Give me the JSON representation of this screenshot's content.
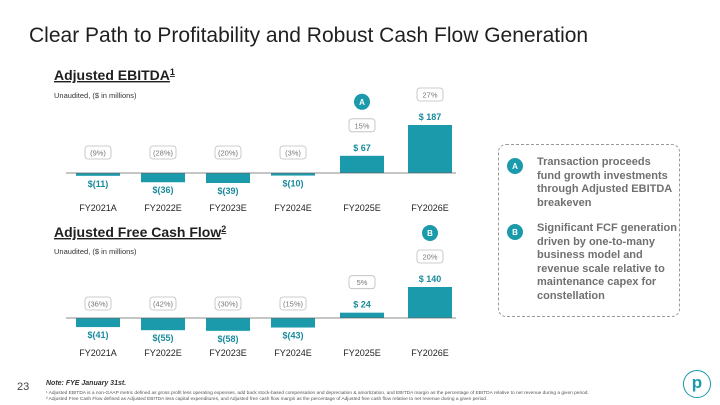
{
  "page": {
    "title": "Clear Path to Profitability and Robust Cash Flow Generation",
    "page_number": "23",
    "note": "Note: FYE January 31st.",
    "footnotes": [
      "¹ Adjusted EBITDA is a non-GAAP metric defined as gross profit less operating expenses, add back stock-based compensation and depreciation & amortization, and EBITDA margin as the percentage of EBITDA relative to net revenue during a given period.",
      "² Adjusted Free Cash Flow defined as Adjusted EBITDA less capital expenditures, and Adjusted free cash flow margin as the percentage of Adjusted free cash flow relative to net revenue during a given period."
    ],
    "logo_letter": "p"
  },
  "callout": {
    "items": [
      {
        "marker": "A",
        "text": "Transaction proceeds fund growth investments through Adjusted EBITDA breakeven"
      },
      {
        "marker": "B",
        "text": "Significant FCF generation driven by one-to-many business model and revenue scale relative to maintenance capex for constellation"
      }
    ]
  },
  "chart_data": [
    {
      "type": "bar",
      "title": "Adjusted EBITDA",
      "title_sup": "1",
      "subtitle": "Unaudited, ($ in millions)",
      "categories": [
        "FY2021A",
        "FY2022E",
        "FY2023E",
        "FY2024E",
        "FY2025E",
        "FY2026E"
      ],
      "values": [
        -11,
        -36,
        -39,
        -10,
        67,
        187
      ],
      "value_labels": [
        "$(11)",
        "$(36)",
        "$(39)",
        "$(10)",
        "$ 67",
        "$ 187"
      ],
      "margin_labels": [
        "(9%)",
        "(28%)",
        "(20%)",
        "(3%)",
        "15%",
        "27%"
      ],
      "marker": "A",
      "marker_index": 4,
      "color": "#1a9aab"
    },
    {
      "type": "bar",
      "title": "Adjusted Free Cash Flow",
      "title_sup": "2",
      "subtitle": "Unaudited, ($ in millions)",
      "categories": [
        "FY2021A",
        "FY2022E",
        "FY2023E",
        "FY2024E",
        "FY2025E",
        "FY2026E"
      ],
      "values": [
        -41,
        -55,
        -58,
        -43,
        24,
        140
      ],
      "value_labels": [
        "$(41)",
        "$(55)",
        "$(58)",
        "$(43)",
        "$ 24",
        "$ 140"
      ],
      "margin_labels": [
        "(36%)",
        "(42%)",
        "(30%)",
        "(15%)",
        "5%",
        "20%"
      ],
      "marker": "B",
      "marker_index": 5,
      "color": "#1a9aab"
    }
  ]
}
